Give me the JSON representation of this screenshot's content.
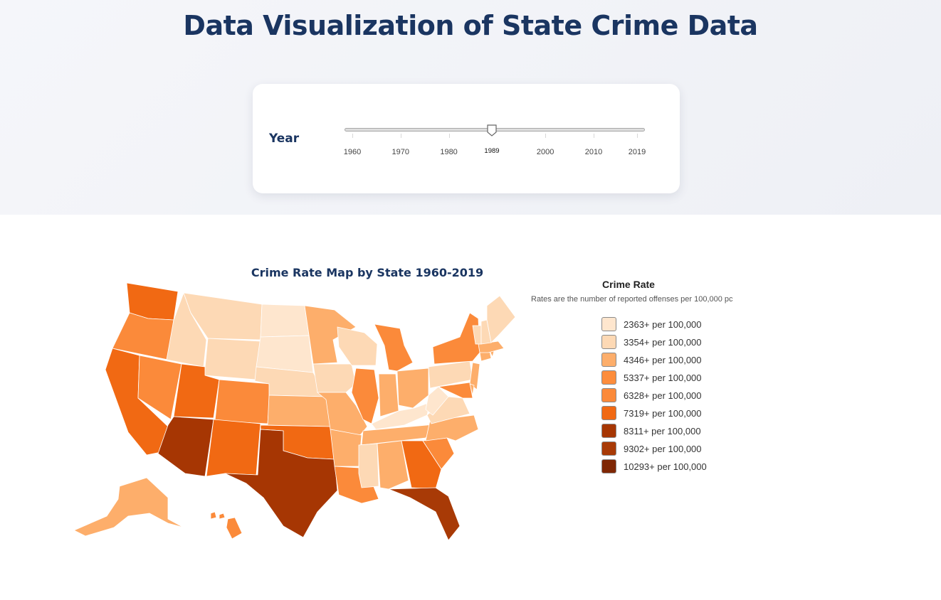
{
  "header": {
    "title": "Data Visualization of State Crime Data"
  },
  "controls": {
    "year_label": "Year",
    "slider": {
      "min": 1960,
      "max": 2019,
      "value": 1989,
      "value_label": "1989",
      "ticks": [
        "1960",
        "1970",
        "1980",
        "2000",
        "2010",
        "2019"
      ]
    }
  },
  "map": {
    "title": "Crime Rate Map by State 1960-2019"
  },
  "legend": {
    "title": "Crime Rate",
    "note": "Rates are the number of reported offenses per 100,000 pc",
    "items": [
      {
        "label": "2363+ per 100,000",
        "color": "#fee6ce"
      },
      {
        "label": "3354+ per 100,000",
        "color": "#fdd9b5"
      },
      {
        "label": "4346+ per 100,000",
        "color": "#fdae6b"
      },
      {
        "label": "5337+ per 100,000",
        "color": "#fd8d3c"
      },
      {
        "label": "6328+ per 100,000",
        "color": "#fb8a3a"
      },
      {
        "label": "7319+ per 100,000",
        "color": "#f16913"
      },
      {
        "label": "8311+ per 100,000",
        "color": "#a63603"
      },
      {
        "label": "9302+ per 100,000",
        "color": "#a83a06"
      },
      {
        "label": "10293+ per 100,000",
        "color": "#7f2704"
      }
    ]
  },
  "colors": {
    "title": "#1a3561",
    "border": "#ffffff"
  },
  "chart_data": {
    "type": "choropleth",
    "year": 1989,
    "region": "United States",
    "bins": [
      2363,
      3354,
      4346,
      5337,
      6328,
      7319,
      8311,
      9302,
      10293
    ],
    "state_bin_index": {
      "Washington": 5,
      "Oregon": 4,
      "California": 5,
      "Nevada": 4,
      "Idaho": 1,
      "Montana": 1,
      "Wyoming": 1,
      "Utah": 5,
      "Colorado": 4,
      "Arizona": 6,
      "New Mexico": 5,
      "North Dakota": 0,
      "South Dakota": 0,
      "Nebraska": 1,
      "Kansas": 2,
      "Oklahoma": 5,
      "Texas": 6,
      "Minnesota": 2,
      "Iowa": 1,
      "Missouri": 2,
      "Arkansas": 2,
      "Louisiana": 4,
      "Wisconsin": 1,
      "Illinois": 4,
      "Michigan": 4,
      "Indiana": 2,
      "Ohio": 2,
      "Kentucky": 0,
      "Tennessee": 2,
      "Mississippi": 1,
      "Alabama": 2,
      "Georgia": 5,
      "Florida": 7,
      "South Carolina": 4,
      "North Carolina": 2,
      "Virginia": 1,
      "West Virginia": 0,
      "Pennsylvania": 1,
      "New York": 4,
      "New Jersey": 2,
      "Maryland": 4,
      "Delaware": 2,
      "Connecticut": 2,
      "Rhode Island": 2,
      "Massachusetts": 2,
      "Vermont": 1,
      "New Hampshire": 1,
      "Maine": 1,
      "Alaska": 2,
      "Hawaii": 4
    }
  }
}
